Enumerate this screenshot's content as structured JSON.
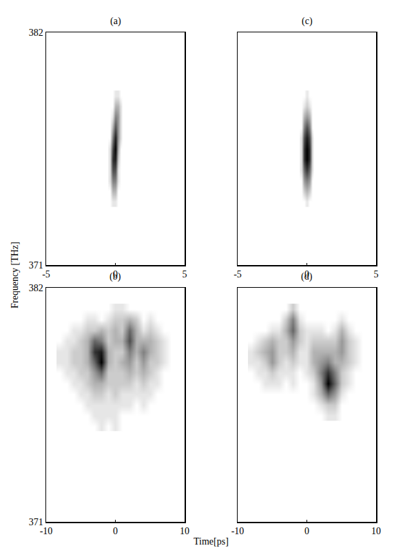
{
  "chart_data": [
    {
      "type": "heatmap",
      "title": "(a)",
      "xlim": [
        -5,
        5
      ],
      "xticks": [
        -5,
        0,
        5
      ],
      "ylim": [
        371,
        382
      ],
      "yticks": [
        371,
        382
      ],
      "zlim": [
        0,
        1
      ],
      "x": [
        -0.4,
        -0.2,
        0,
        0.2,
        0.4
      ],
      "y": [
        374.0,
        374.5,
        375.0,
        375.5,
        376.0,
        376.5,
        377.0,
        377.5,
        378.0,
        378.5,
        379.0
      ],
      "z": [
        [
          0,
          0.1,
          0.1,
          0,
          0
        ],
        [
          0,
          0.3,
          0.3,
          0,
          0
        ],
        [
          0.1,
          0.5,
          0.5,
          0.1,
          0
        ],
        [
          0.1,
          0.7,
          0.7,
          0.1,
          0
        ],
        [
          0.1,
          0.8,
          0.9,
          0.2,
          0
        ],
        [
          0.1,
          0.7,
          1.0,
          0.3,
          0
        ],
        [
          0,
          0.5,
          0.9,
          0.4,
          0.1
        ],
        [
          0,
          0.3,
          0.7,
          0.4,
          0.1
        ],
        [
          0,
          0.1,
          0.5,
          0.4,
          0.1
        ],
        [
          0,
          0,
          0.3,
          0.3,
          0.1
        ],
        [
          0,
          0,
          0.1,
          0.1,
          0
        ]
      ]
    },
    {
      "type": "heatmap",
      "title": "(b)",
      "xlim": [
        -10,
        10
      ],
      "xticks": [
        -10,
        0,
        10
      ],
      "ylim": [
        371,
        382
      ],
      "yticks": [
        371,
        382
      ],
      "zlim": [
        0,
        1
      ],
      "x": [
        -8,
        -7,
        -6,
        -5,
        -4,
        -3,
        -2,
        -1,
        0,
        1,
        2,
        3,
        4,
        5,
        6,
        7,
        8
      ],
      "y": [
        375.5,
        376.0,
        376.5,
        377.0,
        377.5,
        378.0,
        378.5,
        379.0,
        379.5,
        380.0,
        380.5,
        381.0
      ],
      "z": [
        [
          0,
          0,
          0,
          0,
          0,
          0,
          0.1,
          0,
          0.1,
          0,
          0,
          0,
          0,
          0,
          0,
          0,
          0
        ],
        [
          0,
          0,
          0,
          0,
          0,
          0.1,
          0.1,
          0.1,
          0.1,
          0,
          0,
          0,
          0,
          0,
          0,
          0,
          0
        ],
        [
          0,
          0,
          0,
          0,
          0.1,
          0.1,
          0.1,
          0.1,
          0.1,
          0.1,
          0.1,
          0,
          0.1,
          0,
          0,
          0,
          0
        ],
        [
          0,
          0,
          0,
          0.1,
          0.1,
          0.2,
          0.2,
          0.1,
          0.2,
          0.1,
          0.1,
          0.1,
          0.1,
          0.1,
          0,
          0,
          0
        ],
        [
          0,
          0,
          0.1,
          0.1,
          0.2,
          0.3,
          0.3,
          0.2,
          0.2,
          0.2,
          0.2,
          0.1,
          0.2,
          0.1,
          0.1,
          0,
          0
        ],
        [
          0,
          0.1,
          0.1,
          0.2,
          0.2,
          0.4,
          0.6,
          0.2,
          0.2,
          0.2,
          0.3,
          0.2,
          0.3,
          0.2,
          0.1,
          0,
          0
        ],
        [
          0.1,
          0.1,
          0.2,
          0.2,
          0.3,
          0.6,
          1.0,
          0.3,
          0.2,
          0.3,
          0.4,
          0.2,
          0.4,
          0.2,
          0.2,
          0.1,
          0
        ],
        [
          0.1,
          0.1,
          0.2,
          0.2,
          0.3,
          0.8,
          0.9,
          0.3,
          0.2,
          0.2,
          0.5,
          0.3,
          0.5,
          0.3,
          0.2,
          0.1,
          0
        ],
        [
          0,
          0.1,
          0.1,
          0.2,
          0.3,
          0.6,
          0.5,
          0.2,
          0.3,
          0.3,
          0.7,
          0.3,
          0.3,
          0.3,
          0.2,
          0.1,
          0
        ],
        [
          0,
          0,
          0.1,
          0.1,
          0.2,
          0.2,
          0.3,
          0.2,
          0.3,
          0.2,
          0.6,
          0.3,
          0.1,
          0.2,
          0.1,
          0,
          0
        ],
        [
          0,
          0,
          0,
          0,
          0.1,
          0.1,
          0,
          0.1,
          0.2,
          0.2,
          0.3,
          0.2,
          0,
          0.1,
          0,
          0,
          0
        ],
        [
          0,
          0,
          0,
          0,
          0,
          0,
          0,
          0,
          0.1,
          0.1,
          0,
          0,
          0,
          0,
          0,
          0,
          0
        ]
      ]
    },
    {
      "type": "heatmap",
      "title": "(c)",
      "tick_labels": "x",
      "xlim": [
        -5,
        5
      ],
      "xticks": [
        -5,
        0,
        5
      ],
      "ylim": [
        371,
        382
      ],
      "zlim": [
        0,
        1
      ],
      "x": [
        -0.4,
        -0.2,
        0,
        0.2,
        0.4
      ],
      "y": [
        374.0,
        374.5,
        375.0,
        375.5,
        376.0,
        376.5,
        377.0,
        377.5,
        378.0,
        378.5,
        379.0
      ],
      "z": [
        [
          0,
          0,
          0.1,
          0,
          0
        ],
        [
          0,
          0.2,
          0.3,
          0.2,
          0
        ],
        [
          0,
          0.4,
          0.5,
          0.4,
          0
        ],
        [
          0.1,
          0.6,
          0.8,
          0.6,
          0.1
        ],
        [
          0.1,
          0.8,
          1.0,
          0.8,
          0.1
        ],
        [
          0.1,
          0.8,
          1.0,
          0.8,
          0.1
        ],
        [
          0.1,
          0.7,
          0.9,
          0.7,
          0.1
        ],
        [
          0,
          0.5,
          0.7,
          0.5,
          0
        ],
        [
          0,
          0.3,
          0.4,
          0.3,
          0
        ],
        [
          0,
          0.1,
          0.2,
          0.1,
          0
        ],
        [
          0,
          0,
          0.1,
          0,
          0
        ]
      ]
    },
    {
      "type": "heatmap",
      "title": "(d)",
      "tick_labels": "x",
      "xlim": [
        -10,
        10
      ],
      "xticks": [
        -10,
        0,
        10
      ],
      "ylim": [
        371,
        382
      ],
      "zlim": [
        0,
        1
      ],
      "x": [
        -8,
        -7,
        -6,
        -5,
        -4,
        -3,
        -2,
        -1,
        0,
        1,
        2,
        3,
        4,
        5,
        6,
        7,
        8
      ],
      "y": [
        376.0,
        376.5,
        377.0,
        377.5,
        378.0,
        378.5,
        379.0,
        379.5,
        380.0,
        380.5,
        381.0
      ],
      "z": [
        [
          0,
          0,
          0,
          0,
          0,
          0,
          0,
          0,
          0,
          0,
          0,
          0.1,
          0.1,
          0,
          0,
          0,
          0
        ],
        [
          0,
          0,
          0,
          0,
          0,
          0,
          0,
          0,
          0,
          0,
          0.1,
          0.2,
          0.2,
          0,
          0,
          0,
          0
        ],
        [
          0,
          0,
          0,
          0,
          0,
          0,
          0,
          0,
          0,
          0.1,
          0.3,
          0.6,
          0.4,
          0.1,
          0,
          0,
          0
        ],
        [
          0,
          0,
          0.1,
          0.1,
          0.1,
          0,
          0.1,
          0,
          0,
          0.1,
          0.4,
          1.0,
          0.6,
          0.2,
          0.1,
          0,
          0
        ],
        [
          0,
          0.1,
          0.1,
          0.2,
          0.1,
          0.1,
          0.1,
          0,
          0.1,
          0.2,
          0.5,
          0.8,
          0.5,
          0.2,
          0.1,
          0,
          0
        ],
        [
          0.1,
          0.1,
          0.2,
          0.4,
          0.2,
          0.1,
          0.2,
          0.1,
          0.1,
          0.3,
          0.4,
          0.5,
          0.3,
          0.3,
          0.2,
          0.1,
          0
        ],
        [
          0.1,
          0.2,
          0.3,
          0.4,
          0.2,
          0.2,
          0.3,
          0.1,
          0.1,
          0.3,
          0.3,
          0.3,
          0.3,
          0.4,
          0.2,
          0.1,
          0
        ],
        [
          0,
          0.1,
          0.2,
          0.3,
          0.2,
          0.2,
          0.4,
          0.2,
          0.1,
          0.2,
          0.2,
          0.2,
          0.2,
          0.4,
          0.2,
          0.1,
          0
        ],
        [
          0,
          0,
          0,
          0.1,
          0.1,
          0.3,
          0.6,
          0.2,
          0.1,
          0.1,
          0.1,
          0,
          0.1,
          0.3,
          0.1,
          0,
          0
        ],
        [
          0,
          0,
          0,
          0,
          0,
          0.2,
          0.5,
          0.1,
          0,
          0,
          0,
          0,
          0,
          0.1,
          0,
          0,
          0
        ],
        [
          0,
          0,
          0,
          0,
          0,
          0,
          0.2,
          0,
          0,
          0,
          0,
          0,
          0,
          0,
          0,
          0,
          0
        ]
      ]
    }
  ],
  "xlabel": "Time[ps]",
  "ylabel": "Frequency [THz]"
}
